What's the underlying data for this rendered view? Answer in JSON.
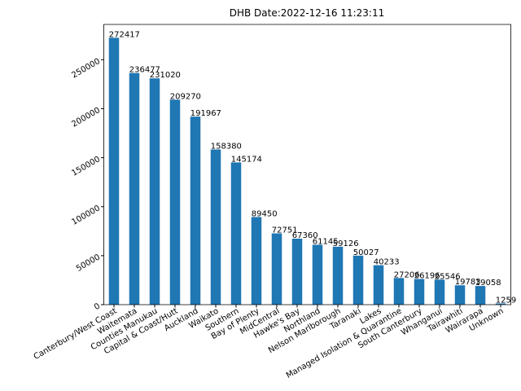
{
  "chart_data": {
    "type": "bar",
    "title": "DHB  Date:2022-12-16 11:23:11",
    "categories": [
      "Canterbury/West Coast",
      "Waitemata",
      "Counties Manukau",
      "Capital & Coast/Hutt",
      "Auckland",
      "Waikato",
      "Southern",
      "Bay of Plenty",
      "MidCentral",
      "Hawke's Bay",
      "Northland",
      "Nelson Marlborough",
      "Taranaki",
      "Lakes",
      "Managed Isolation & Quarantine",
      "South Canterbury",
      "Whanganui",
      "Tairawhiti",
      "Wairarapa",
      "Unknown"
    ],
    "values": [
      272417,
      236477,
      231020,
      209270,
      191967,
      158380,
      145174,
      89450,
      72751,
      67360,
      61145,
      59126,
      50027,
      40233,
      27206,
      26196,
      25546,
      19783,
      19058,
      1259
    ],
    "color": "#1f77b4",
    "ylim": [
      0,
      286038
    ],
    "yticks": [
      0,
      50000,
      100000,
      150000,
      200000,
      250000
    ]
  }
}
